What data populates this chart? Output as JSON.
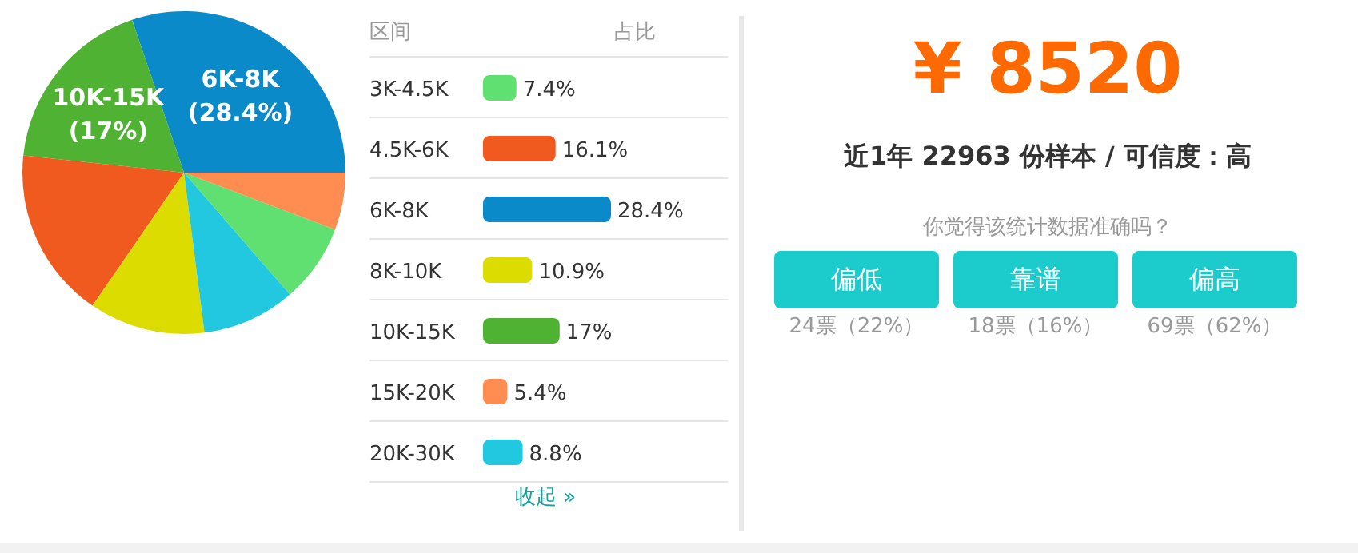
{
  "chart_data": [
    {
      "type": "pie",
      "categories": [
        "6K-8K",
        "10K-15K",
        null,
        null,
        null,
        null,
        null
      ],
      "values": [
        28.4,
        17,
        16.1,
        10.9,
        8.8,
        7.4,
        5.4
      ],
      "colors": [
        "#0a8ac8",
        "#4fb233",
        "#f05a1e",
        "#dcdc00",
        "#22c8e0",
        "#60e070",
        "#ff8c50"
      ],
      "value_labels": [
        "(28.4%)",
        "(17%)",
        null,
        null,
        null,
        null,
        null
      ]
    },
    {
      "type": "bar",
      "orientation": "horizontal",
      "ylabel": "区间",
      "xlabel": "占比",
      "categories": [
        "3K-4.5K",
        "4.5K-6K",
        "6K-8K",
        "8K-10K",
        "10K-15K",
        "15K-20K",
        "20K-30K"
      ],
      "values": [
        7.4,
        16.1,
        28.4,
        10.9,
        17,
        5.4,
        8.8
      ],
      "colors": [
        "#60e070",
        "#f05a1e",
        "#0a8ac8",
        "#dcdc00",
        "#4fb233",
        "#ff8c50",
        "#22c8e0"
      ],
      "value_labels": [
        "7.4%",
        "16.1%",
        "28.4%",
        "10.9%",
        "17%",
        "5.4%",
        "8.8%"
      ],
      "tick_labels": "y",
      "annotations": [
        "收起 »"
      ]
    },
    {
      "type": "other",
      "title": "¥ 8520",
      "subtitle": "近1年 22963 份样本 / 可信度：高",
      "annotations": [
        "你觉得该统计数据准确吗？",
        "偏低",
        "24票（22%）",
        "靠谱",
        "18票（16%）",
        "偏高",
        "69票（62%）"
      ]
    }
  ]
}
